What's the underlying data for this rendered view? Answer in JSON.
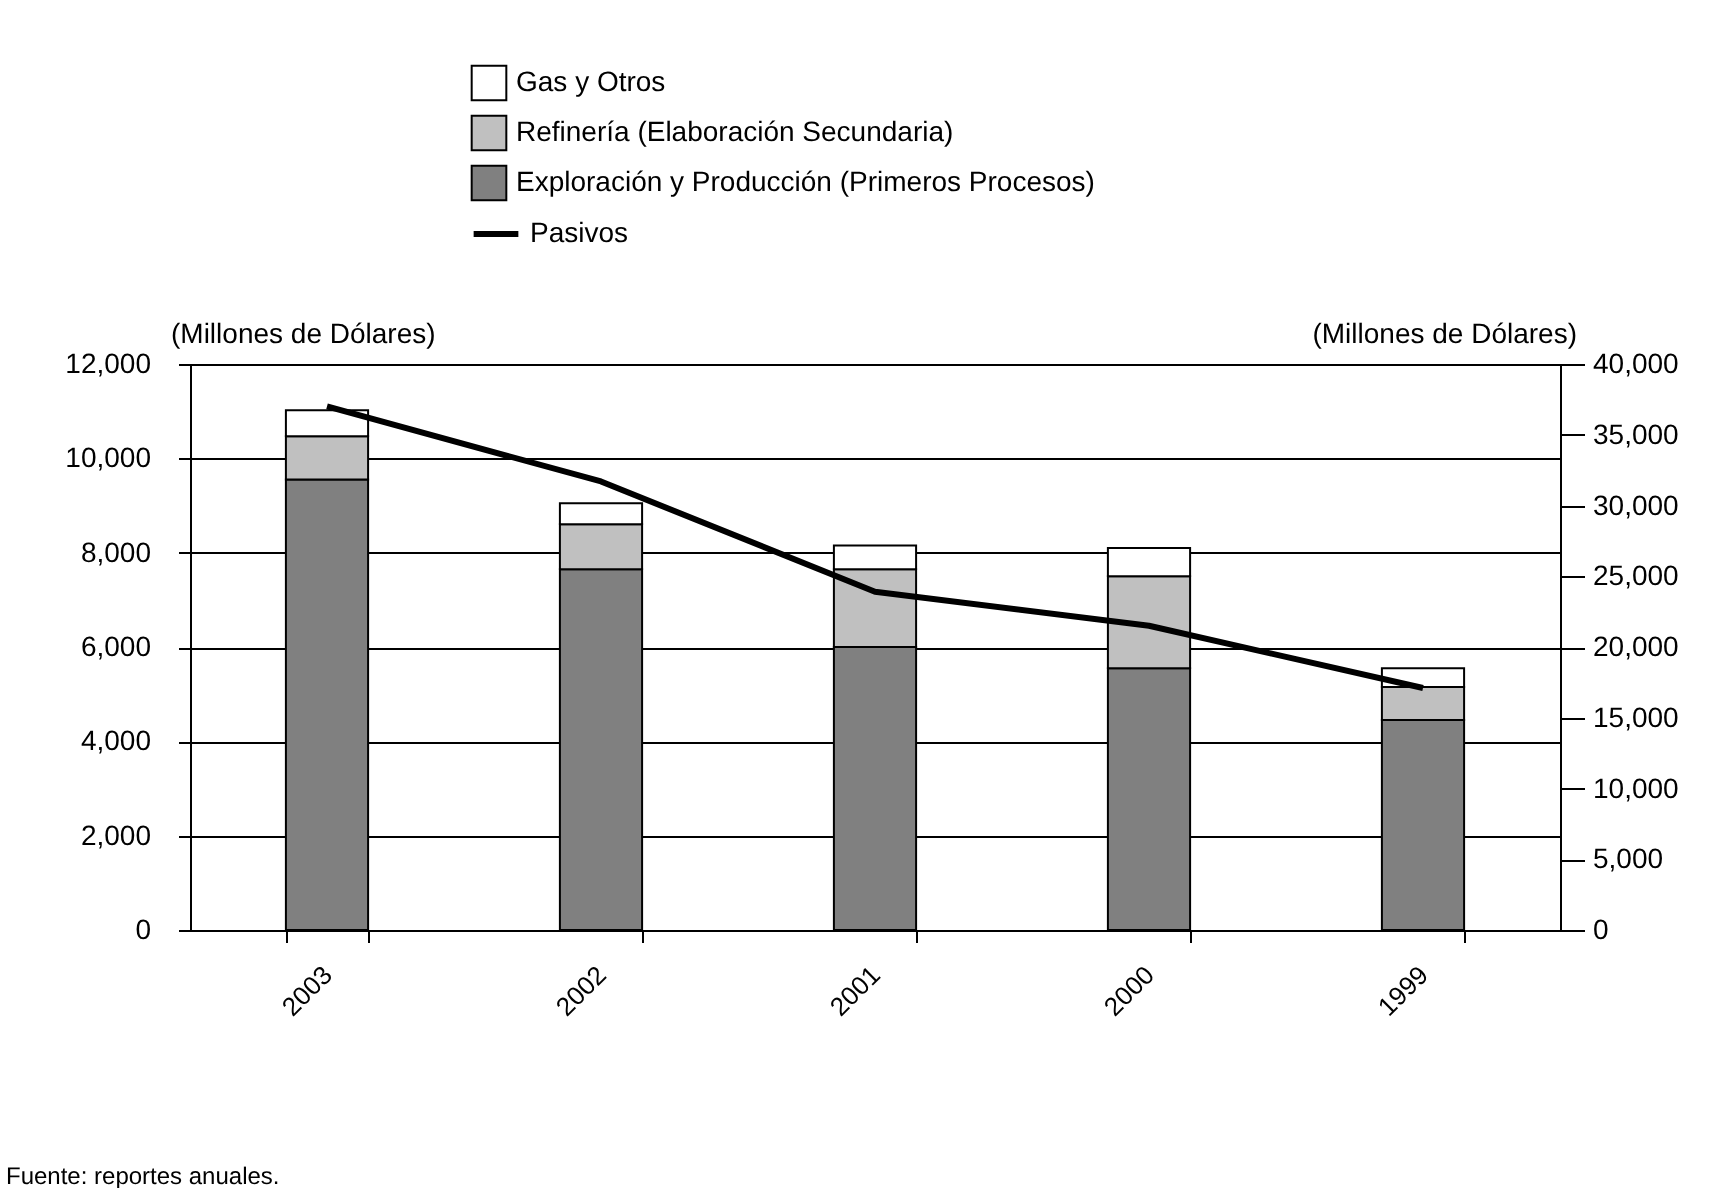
{
  "chart_data": {
    "type": "bar",
    "stacked": true,
    "categories": [
      "2003",
      "2002",
      "2001",
      "2000",
      "1999"
    ],
    "ylabel": "(Millones de Dólares)",
    "y2label": "(Millones de Dólares)",
    "series": [
      {
        "name": "Exploración y Producción (Primeros Procesos)",
        "color": "#808080",
        "values": [
          9550,
          7650,
          6000,
          5550,
          4450
        ]
      },
      {
        "name": "Refinería (Elaboración Secundaria)",
        "color": "#c0c0c0",
        "values": [
          920,
          950,
          1650,
          1950,
          700
        ]
      },
      {
        "name": "Gas y Otros",
        "color": "#ffffff",
        "values": [
          550,
          450,
          500,
          600,
          400
        ]
      },
      {
        "name": "Pasivos",
        "type": "line",
        "axis": "y2",
        "color": "#000000",
        "values": [
          37000,
          31700,
          23900,
          21500,
          17100
        ]
      }
    ],
    "ylim": [
      0,
      12000
    ],
    "yticks": [
      0,
      {
        "value": 2000,
        "label": "2,000"
      },
      {
        "value": 4000,
        "label": "4,000"
      },
      {
        "value": 6000,
        "label": "6,000"
      },
      {
        "value": 8000,
        "label": "8,000"
      },
      {
        "value": 10000,
        "label": "10,000"
      },
      {
        "value": 12000,
        "label": "12,000"
      }
    ],
    "y2lim": [
      0,
      40000
    ],
    "y2ticks": [
      0,
      {
        "value": 5000,
        "label": "5,000"
      },
      {
        "value": 10000,
        "label": "10,000"
      },
      {
        "value": 15000,
        "label": "15,000"
      },
      {
        "value": 20000,
        "label": "20,000"
      },
      {
        "value": 25000,
        "label": "25,000"
      },
      {
        "value": 30000,
        "label": "30,000"
      },
      {
        "value": 35000,
        "label": "35,000"
      },
      {
        "value": 40000,
        "label": "40,000"
      }
    ],
    "grid": "y",
    "legend": "top",
    "marker": "none",
    "line_style": "solid",
    "annotations": [
      "Fuente: reportes anuales."
    ]
  }
}
